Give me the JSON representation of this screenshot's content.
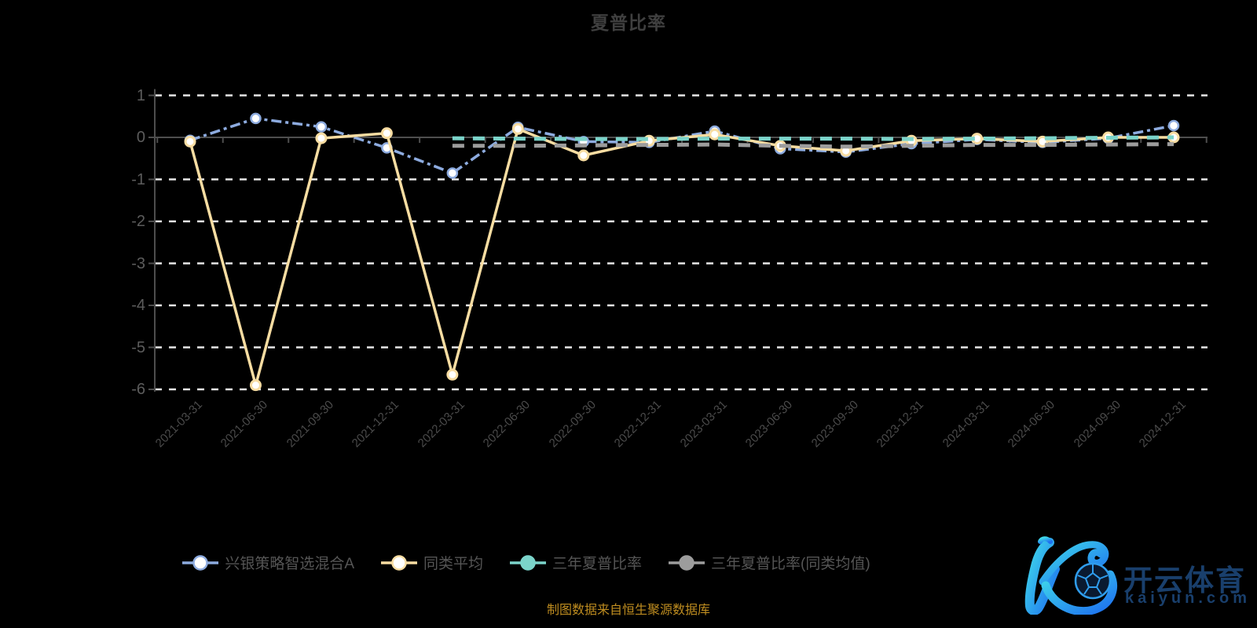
{
  "title": "夏普比率",
  "caption": "制图数据来自恒生聚源数据库",
  "watermark": {
    "cn": "开云体育",
    "site": "kaiyun.com",
    "color": "#193f6c",
    "gradient_start": "#3fd9ea",
    "gradient_end": "#1d6ff0"
  },
  "colors": {
    "background": "#000000",
    "title": "#3f3f3f",
    "axis": "#4e4e4e",
    "grid": "#e8e8e8",
    "y_label": "#5c5c5c",
    "x_label": "#4b4b4b",
    "legend_text": "#555555",
    "caption": "#bf8d20"
  },
  "chart_data": {
    "type": "line",
    "title": "夏普比率",
    "categories": [
      "2021-03-31",
      "2021-06-30",
      "2021-09-30",
      "2021-12-31",
      "2022-03-31",
      "2022-06-30",
      "2022-09-30",
      "2022-12-31",
      "2023-03-31",
      "2023-06-30",
      "2023-09-30",
      "2023-12-31",
      "2024-03-31",
      "2024-06-30",
      "2024-09-30",
      "2024-12-31"
    ],
    "series": [
      {
        "name": "兴银策略智选混合A",
        "color": "#8dabdf",
        "line_style": "dashdot",
        "marker": "hollow",
        "values": [
          -0.07,
          0.45,
          0.25,
          -0.25,
          -0.85,
          0.24,
          -0.1,
          -0.12,
          0.15,
          -0.27,
          -0.35,
          -0.15,
          -0.05,
          -0.12,
          -0.02,
          0.28
        ]
      },
      {
        "name": "同类平均",
        "color": "#f8dda2",
        "line_style": "solid",
        "marker": "hollow",
        "values": [
          -0.1,
          -5.9,
          -0.02,
          0.1,
          -5.65,
          0.2,
          -0.43,
          -0.08,
          0.07,
          -0.2,
          -0.32,
          -0.08,
          -0.03,
          -0.1,
          0.0,
          0.0
        ]
      },
      {
        "name": "三年夏普比率",
        "color": "#7bd4ca",
        "line_style": "dashed",
        "marker": "filled",
        "values": [
          null,
          null,
          null,
          null,
          -0.02,
          -0.03,
          -0.04,
          -0.04,
          -0.03,
          -0.03,
          -0.03,
          -0.04,
          -0.03,
          -0.02,
          -0.01,
          0.0
        ]
      },
      {
        "name": "三年夏普比率(同类均值)",
        "color": "#9c9c9c",
        "line_style": "dashed",
        "marker": "filled",
        "values": [
          null,
          null,
          null,
          null,
          -0.2,
          -0.2,
          -0.19,
          -0.18,
          -0.17,
          -0.2,
          -0.22,
          -0.2,
          -0.18,
          -0.18,
          -0.17,
          -0.16
        ]
      }
    ],
    "ylabel": "",
    "xlabel": "",
    "ylim": [
      -6,
      1
    ],
    "yticks": [
      1,
      0,
      -1,
      -2,
      -3,
      -4,
      -5,
      -6
    ],
    "grid": "horizontal white dashed lines, x-axis drawn on zero line",
    "legend_position": "bottom",
    "x_label_rotation": 45
  }
}
